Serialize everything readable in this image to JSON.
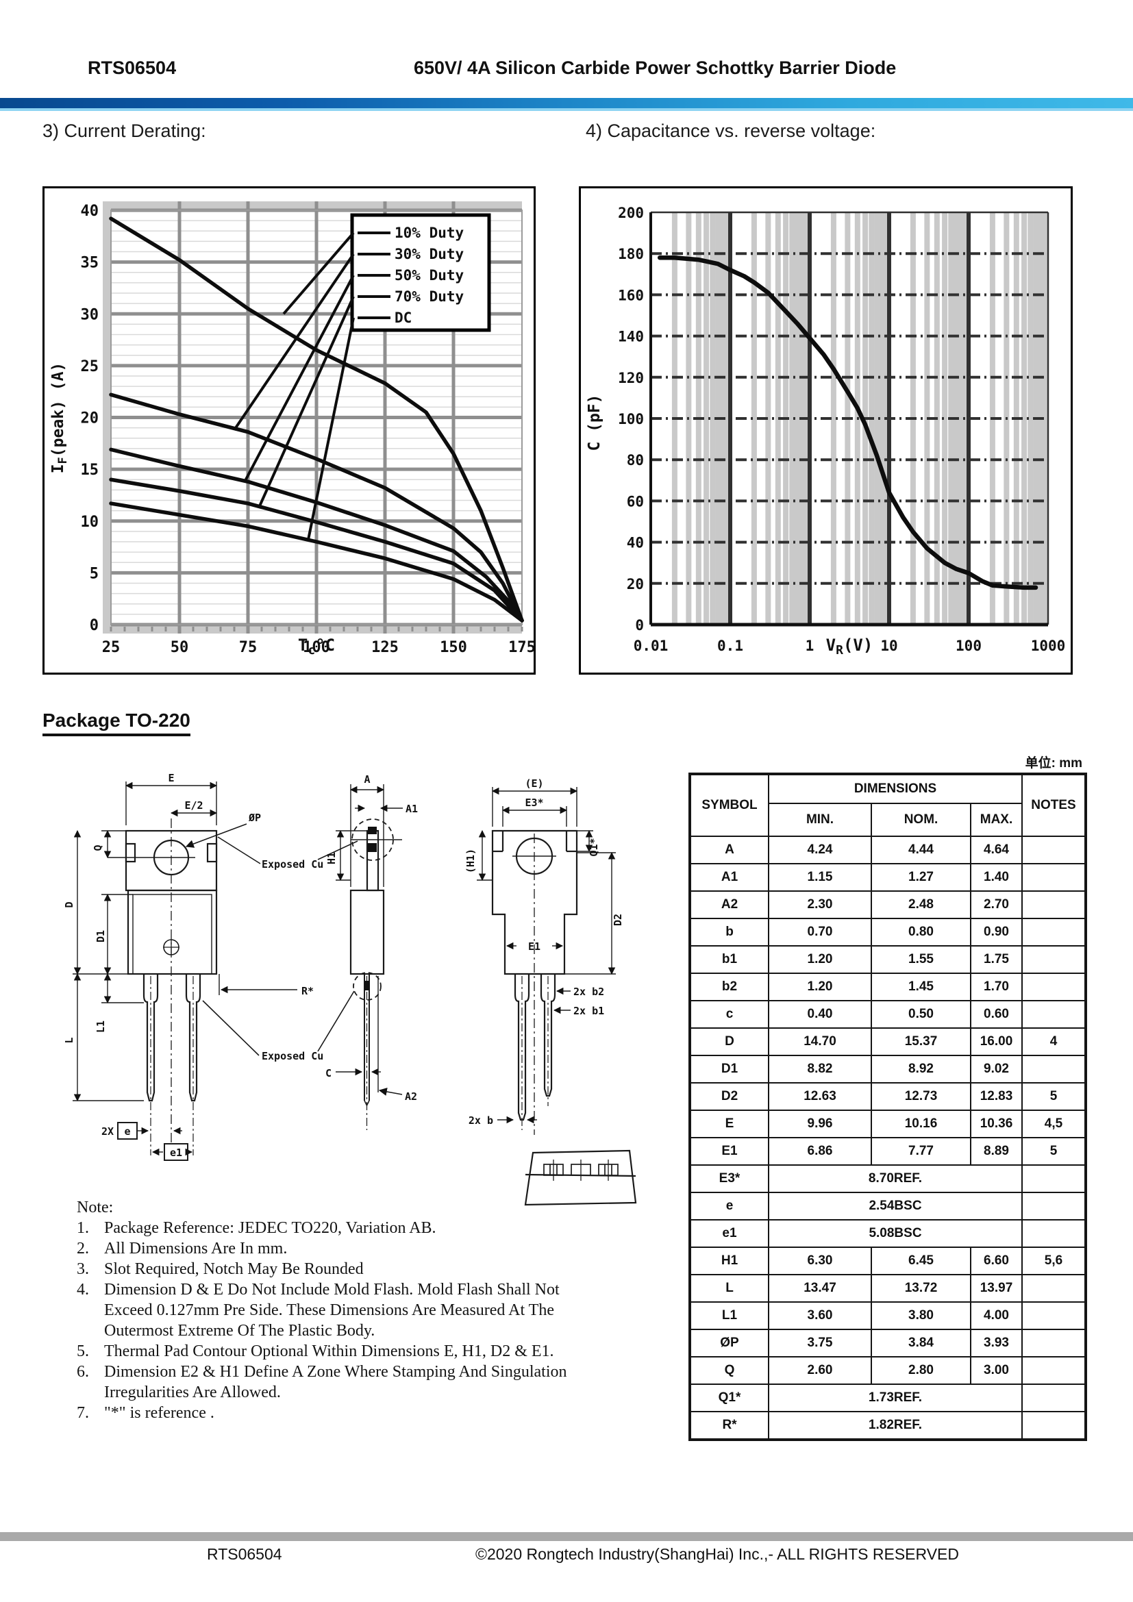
{
  "header": {
    "part_number": "RTS06504",
    "title": "650V/ 4A Silicon Carbide Power Schottky Barrier Diode"
  },
  "sections": {
    "derating": "3) Current Derating:",
    "capacitance": "4) Capacitance vs. reverse voltage:"
  },
  "package": {
    "heading": "Package TO-220",
    "unit_label": "单位: mm"
  },
  "chart_data": [
    {
      "type": "line",
      "name": "current-derating",
      "xlabel": {
        "pre": "T",
        "sub": "c",
        "post": "°C"
      },
      "ylabel": {
        "pre": "I",
        "sub": "F",
        "post": "(peak)  (A)"
      },
      "xlim": [
        25,
        175
      ],
      "ylim": [
        0,
        40
      ],
      "xticks": [
        25,
        50,
        75,
        100,
        125,
        150,
        175
      ],
      "yticks": [
        0,
        5,
        10,
        15,
        20,
        25,
        30,
        35,
        40
      ],
      "grid": true,
      "legend_position": "top-right",
      "legend_labels": [
        "10% Duty",
        "30% Duty",
        "50% Duty",
        "70% Duty",
        "DC"
      ],
      "callout_targets": [
        [
          88,
          30
        ],
        [
          70,
          18.8
        ],
        [
          74,
          13.9
        ],
        [
          79,
          11.3
        ],
        [
          97,
          8.2
        ]
      ],
      "series": [
        {
          "name": "10% Duty",
          "points": [
            [
              25,
              39.2
            ],
            [
              50,
              35.2
            ],
            [
              75,
              30.5
            ],
            [
              100,
              26.5
            ],
            [
              125,
              23.3
            ],
            [
              140,
              20.5
            ],
            [
              150,
              16.5
            ],
            [
              160,
              11
            ],
            [
              168,
              5.5
            ],
            [
              175,
              0.4
            ]
          ]
        },
        {
          "name": "30% Duty",
          "points": [
            [
              25,
              22.2
            ],
            [
              50,
              20.3
            ],
            [
              75,
              18.6
            ],
            [
              100,
              16
            ],
            [
              125,
              13.2
            ],
            [
              150,
              9.3
            ],
            [
              160,
              7
            ],
            [
              168,
              4
            ],
            [
              175,
              0.4
            ]
          ]
        },
        {
          "name": "50% Duty",
          "points": [
            [
              25,
              16.9
            ],
            [
              50,
              15.3
            ],
            [
              75,
              13.8
            ],
            [
              100,
              11.8
            ],
            [
              125,
              9.6
            ],
            [
              150,
              7.1
            ],
            [
              162,
              4.6
            ],
            [
              170,
              2.3
            ],
            [
              175,
              0.4
            ]
          ]
        },
        {
          "name": "70% Duty",
          "points": [
            [
              25,
              14
            ],
            [
              50,
              12.9
            ],
            [
              75,
              11.7
            ],
            [
              100,
              9.9
            ],
            [
              125,
              8
            ],
            [
              150,
              5.9
            ],
            [
              165,
              3.3
            ],
            [
              175,
              0.4
            ]
          ]
        },
        {
          "name": "DC",
          "points": [
            [
              25,
              11.7
            ],
            [
              50,
              10.6
            ],
            [
              75,
              9.5
            ],
            [
              100,
              8
            ],
            [
              125,
              6.4
            ],
            [
              150,
              4.4
            ],
            [
              165,
              2.4
            ],
            [
              175,
              0.4
            ]
          ]
        }
      ]
    },
    {
      "type": "line",
      "name": "capacitance-vs-reverse-voltage",
      "xscale": "log",
      "xlabel": {
        "pre": "V",
        "sub": "R",
        "post": "(V)"
      },
      "ylabel": {
        "pre": "C",
        "sub": "",
        "post": " (pF)"
      },
      "xlim": [
        0.01,
        1000
      ],
      "ylim": [
        0,
        200
      ],
      "xticks": [
        0.01,
        0.1,
        1,
        10,
        100,
        1000
      ],
      "xtick_labels": [
        "0.01",
        "0.1",
        "1",
        "10",
        "100",
        "1000"
      ],
      "yticks": [
        0,
        20,
        40,
        60,
        80,
        100,
        120,
        140,
        160,
        180,
        200
      ],
      "grid": true,
      "series": [
        {
          "name": "C",
          "points": [
            [
              0.013,
              178
            ],
            [
              0.02,
              178
            ],
            [
              0.04,
              177
            ],
            [
              0.07,
              175
            ],
            [
              0.1,
              172
            ],
            [
              0.15,
              169
            ],
            [
              0.2,
              166
            ],
            [
              0.3,
              161
            ],
            [
              0.5,
              152
            ],
            [
              0.7,
              146
            ],
            [
              1,
              139
            ],
            [
              1.5,
              131
            ],
            [
              2,
              124
            ],
            [
              3,
              113
            ],
            [
              4,
              105
            ],
            [
              5,
              97
            ],
            [
              7,
              82
            ],
            [
              10,
              64
            ],
            [
              15,
              52
            ],
            [
              20,
              45
            ],
            [
              30,
              37
            ],
            [
              50,
              30
            ],
            [
              70,
              27
            ],
            [
              100,
              25
            ],
            [
              150,
              21
            ],
            [
              200,
              19
            ],
            [
              300,
              18.5
            ],
            [
              500,
              18
            ],
            [
              700,
              18
            ]
          ]
        }
      ]
    }
  ],
  "drawing": {
    "labels": [
      "E",
      "E/2",
      "ØP",
      "Q",
      "D",
      "D1",
      "L",
      "L1",
      "R*",
      "2X",
      "e",
      "e1",
      "Exposed Cu",
      "Exposed Cu",
      "A",
      "A1",
      "H1",
      "C",
      "A2",
      "(E)",
      "E3*",
      "Q1*",
      "(H1)",
      "E1",
      "D2",
      "2x b2",
      "2x b1",
      "2x b"
    ]
  },
  "table": {
    "col_symbol": "SYMBOL",
    "col_dimensions": "DIMENSIONS",
    "col_notes": "NOTES",
    "col_min": "MIN.",
    "col_nom": "NOM.",
    "col_max": "MAX.",
    "rows": [
      {
        "symbol": "A",
        "min": "4.24",
        "nom": "4.44",
        "max": "4.64",
        "notes": ""
      },
      {
        "symbol": "A1",
        "min": "1.15",
        "nom": "1.27",
        "max": "1.40",
        "notes": ""
      },
      {
        "symbol": "A2",
        "min": "2.30",
        "nom": "2.48",
        "max": "2.70",
        "notes": ""
      },
      {
        "symbol": "b",
        "min": "0.70",
        "nom": "0.80",
        "max": "0.90",
        "notes": ""
      },
      {
        "symbol": "b1",
        "min": "1.20",
        "nom": "1.55",
        "max": "1.75",
        "notes": ""
      },
      {
        "symbol": "b2",
        "min": "1.20",
        "nom": "1.45",
        "max": "1.70",
        "notes": ""
      },
      {
        "symbol": "c",
        "min": "0.40",
        "nom": "0.50",
        "max": "0.60",
        "notes": ""
      },
      {
        "symbol": "D",
        "min": "14.70",
        "nom": "15.37",
        "max": "16.00",
        "notes": "4"
      },
      {
        "symbol": "D1",
        "min": "8.82",
        "nom": "8.92",
        "max": "9.02",
        "notes": ""
      },
      {
        "symbol": "D2",
        "min": "12.63",
        "nom": "12.73",
        "max": "12.83",
        "notes": "5"
      },
      {
        "symbol": "E",
        "min": "9.96",
        "nom": "10.16",
        "max": "10.36",
        "notes": "4,5"
      },
      {
        "symbol": "E1",
        "min": "6.86",
        "nom": "7.77",
        "max": "8.89",
        "notes": "5"
      },
      {
        "symbol": "E3*",
        "span": "8.70REF.",
        "notes": ""
      },
      {
        "symbol": "e",
        "span": "2.54BSC",
        "notes": ""
      },
      {
        "symbol": "e1",
        "span": "5.08BSC",
        "notes": ""
      },
      {
        "symbol": "H1",
        "min": "6.30",
        "nom": "6.45",
        "max": "6.60",
        "notes": "5,6"
      },
      {
        "symbol": "L",
        "min": "13.47",
        "nom": "13.72",
        "max": "13.97",
        "notes": ""
      },
      {
        "symbol": "L1",
        "min": "3.60",
        "nom": "3.80",
        "max": "4.00",
        "notes": ""
      },
      {
        "symbol": "ØP",
        "min": "3.75",
        "nom": "3.84",
        "max": "3.93",
        "notes": ""
      },
      {
        "symbol": "Q",
        "min": "2.60",
        "nom": "2.80",
        "max": "3.00",
        "notes": ""
      },
      {
        "symbol": "Q1*",
        "span": "1.73REF.",
        "notes": ""
      },
      {
        "symbol": "R*",
        "span": "1.82REF.",
        "notes": ""
      }
    ]
  },
  "notes": {
    "heading": "Note:",
    "items": [
      "Package Reference: JEDEC TO220, Variation AB.",
      "All Dimensions Are In mm.",
      "Slot Required, Notch May Be Rounded",
      "Dimension D & E Do Not Include Mold Flash. Mold Flash Shall Not Exceed 0.127mm Pre Side. These Dimensions Are Measured At The Outermost Extreme Of The Plastic Body.",
      "Thermal Pad Contour Optional Within Dimensions E, H1, D2 & E1.",
      "Dimension E2 & H1 Define A Zone Where Stamping And Singulation Irregularities Are Allowed.",
      "\"*\"  is reference ."
    ]
  },
  "footer": {
    "part_number": "RTS06504",
    "copyright": "©2020 Rongtech Industry(ShangHai) Inc.,- ALL RIGHTS RESERVED"
  }
}
